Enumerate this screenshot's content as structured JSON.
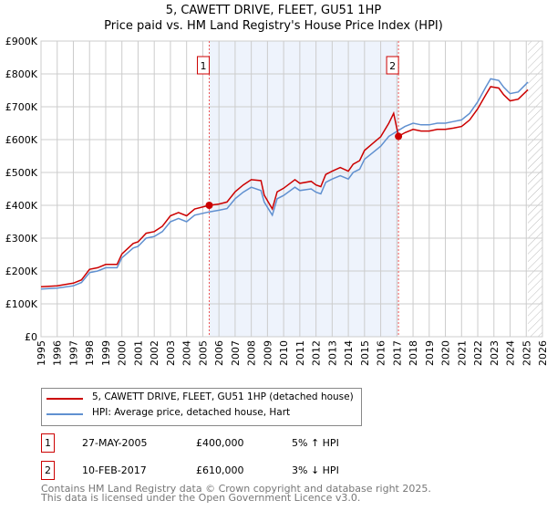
{
  "title": "5, CAWETT DRIVE, FLEET, GU51 1HP",
  "subtitle": "Price paid vs. HM Land Registry's House Price Index (HPI)",
  "chart_data": {
    "type": "line",
    "title": "5, CAWETT DRIVE, FLEET, GU51 1HP",
    "subtitle": "Price paid vs. HM Land Registry's House Price Index (HPI)",
    "xlim": [
      1995,
      2026
    ],
    "ylim": [
      0,
      900000
    ],
    "yticks": [
      0,
      100000,
      200000,
      300000,
      400000,
      500000,
      600000,
      700000,
      800000,
      900000
    ],
    "ytick_labels": [
      "£0",
      "£100K",
      "£200K",
      "£300K",
      "£400K",
      "£500K",
      "£600K",
      "£700K",
      "£800K",
      "£900K"
    ],
    "xticks": [
      "1995",
      "1996",
      "1997",
      "1998",
      "1999",
      "2000",
      "2001",
      "2002",
      "2003",
      "2004",
      "2005",
      "2006",
      "2007",
      "2008",
      "2009",
      "2010",
      "2011",
      "2012",
      "2013",
      "2014",
      "2015",
      "2016",
      "2017",
      "2018",
      "2019",
      "2020",
      "2021",
      "2022",
      "2023",
      "2024",
      "2025",
      "2026"
    ],
    "grid": true,
    "shaded_range": [
      2005.4,
      2017.1
    ],
    "hatched_from": 2025.1,
    "colors": {
      "property": "#cc0000",
      "hpi": "#6090d0",
      "shade": "#eef3fc"
    },
    "series": [
      {
        "name": "5, CAWETT DRIVE, FLEET, GU51 1HP (detached house)",
        "points": [
          [
            1995,
            152
          ],
          [
            1996,
            155
          ],
          [
            1997,
            163
          ],
          [
            1997.5,
            173
          ],
          [
            1998,
            205
          ],
          [
            1998.5,
            210
          ],
          [
            1999,
            220
          ],
          [
            1999.7,
            220
          ],
          [
            2000,
            252
          ],
          [
            2000.7,
            284
          ],
          [
            2001,
            289
          ],
          [
            2001.5,
            315
          ],
          [
            2002,
            320
          ],
          [
            2002.5,
            336
          ],
          [
            2003,
            368
          ],
          [
            2003.5,
            378
          ],
          [
            2004,
            368
          ],
          [
            2004.5,
            389
          ],
          [
            2005.4,
            400
          ],
          [
            2006,
            404
          ],
          [
            2006.5,
            410
          ],
          [
            2007,
            441
          ],
          [
            2007.5,
            462
          ],
          [
            2008,
            478
          ],
          [
            2008.6,
            475
          ],
          [
            2008.8,
            431
          ],
          [
            2009.3,
            389
          ],
          [
            2009.6,
            441
          ],
          [
            2010,
            452
          ],
          [
            2010.7,
            478
          ],
          [
            2011,
            467
          ],
          [
            2011.7,
            473
          ],
          [
            2012,
            462
          ],
          [
            2012.3,
            457
          ],
          [
            2012.6,
            494
          ],
          [
            2013,
            504
          ],
          [
            2013.5,
            515
          ],
          [
            2014,
            504
          ],
          [
            2014.3,
            525
          ],
          [
            2014.7,
            536
          ],
          [
            2015,
            567
          ],
          [
            2015.5,
            588
          ],
          [
            2016,
            609
          ],
          [
            2016.5,
            650
          ],
          [
            2016.8,
            680
          ],
          [
            2017.1,
            610
          ],
          [
            2017.5,
            621
          ],
          [
            2018,
            631
          ],
          [
            2018.5,
            626
          ],
          [
            2019,
            626
          ],
          [
            2019.5,
            631
          ],
          [
            2020,
            631
          ],
          [
            2020.5,
            635
          ],
          [
            2021,
            640
          ],
          [
            2021.5,
            660
          ],
          [
            2022,
            694
          ],
          [
            2022.5,
            737
          ],
          [
            2022.8,
            761
          ],
          [
            2023.3,
            757
          ],
          [
            2023.6,
            737
          ],
          [
            2024,
            718
          ],
          [
            2024.5,
            723
          ],
          [
            2025,
            747
          ],
          [
            2025.1,
            752
          ]
        ]
      },
      {
        "name": "HPI: Average price, detached house, Hart",
        "points": [
          [
            1995,
            145
          ],
          [
            1996,
            148
          ],
          [
            1997,
            155
          ],
          [
            1997.5,
            165
          ],
          [
            1998,
            195
          ],
          [
            1998.5,
            200
          ],
          [
            1999,
            210
          ],
          [
            1999.7,
            210
          ],
          [
            2000,
            240
          ],
          [
            2000.7,
            270
          ],
          [
            2001,
            275
          ],
          [
            2001.5,
            300
          ],
          [
            2002,
            305
          ],
          [
            2002.5,
            320
          ],
          [
            2003,
            350
          ],
          [
            2003.5,
            360
          ],
          [
            2004,
            350
          ],
          [
            2004.5,
            370
          ],
          [
            2005.4,
            380
          ],
          [
            2006,
            385
          ],
          [
            2006.5,
            390
          ],
          [
            2007,
            420
          ],
          [
            2007.5,
            440
          ],
          [
            2008,
            455
          ],
          [
            2008.6,
            445
          ],
          [
            2008.8,
            410
          ],
          [
            2009.3,
            370
          ],
          [
            2009.6,
            420
          ],
          [
            2010,
            430
          ],
          [
            2010.7,
            455
          ],
          [
            2011,
            445
          ],
          [
            2011.7,
            450
          ],
          [
            2012,
            440
          ],
          [
            2012.3,
            435
          ],
          [
            2012.6,
            470
          ],
          [
            2013,
            480
          ],
          [
            2013.5,
            490
          ],
          [
            2014,
            480
          ],
          [
            2014.3,
            500
          ],
          [
            2014.7,
            510
          ],
          [
            2015,
            540
          ],
          [
            2015.5,
            560
          ],
          [
            2016,
            580
          ],
          [
            2016.5,
            610
          ],
          [
            2017,
            625
          ],
          [
            2017.5,
            640
          ],
          [
            2018,
            650
          ],
          [
            2018.5,
            645
          ],
          [
            2019,
            645
          ],
          [
            2019.5,
            650
          ],
          [
            2020,
            650
          ],
          [
            2020.5,
            655
          ],
          [
            2021,
            660
          ],
          [
            2021.5,
            680
          ],
          [
            2022,
            715
          ],
          [
            2022.5,
            760
          ],
          [
            2022.8,
            785
          ],
          [
            2023.3,
            780
          ],
          [
            2023.6,
            760
          ],
          [
            2024,
            740
          ],
          [
            2024.5,
            745
          ],
          [
            2025,
            770
          ],
          [
            2025.1,
            775
          ]
        ]
      }
    ],
    "unit_note": "values in £K",
    "sales": [
      {
        "label": "1",
        "x": 2005.4,
        "y": 400
      },
      {
        "label": "2",
        "x": 2017.1,
        "y": 610
      }
    ]
  },
  "legend": {
    "property": "5, CAWETT DRIVE, FLEET, GU51 1HP (detached house)",
    "hpi": "HPI: Average price, detached house, Hart"
  },
  "transactions": [
    {
      "num": "1",
      "date": "27-MAY-2005",
      "price": "£400,000",
      "delta": "5% ↑ HPI"
    },
    {
      "num": "2",
      "date": "10-FEB-2017",
      "price": "£610,000",
      "delta": "3% ↓ HPI"
    }
  ],
  "footer": {
    "line1": "Contains HM Land Registry data © Crown copyright and database right 2025.",
    "line2": "This data is licensed under the Open Government Licence v3.0."
  }
}
